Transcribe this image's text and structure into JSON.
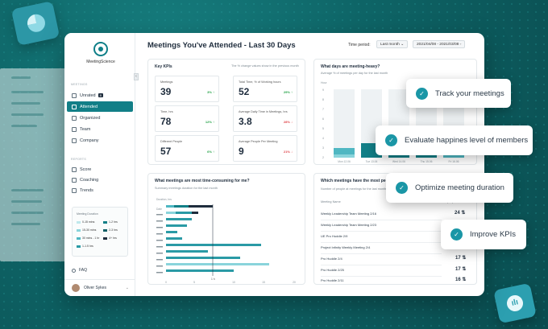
{
  "brand": {
    "logo_text": "MeetingScience"
  },
  "sidebar": {
    "meetings_header": "MEETINGS",
    "items": [
      {
        "label": "Unrated",
        "badge": "8"
      },
      {
        "label": "Attended"
      },
      {
        "label": "Organized"
      },
      {
        "label": "Team"
      },
      {
        "label": "Company"
      }
    ],
    "reports_header": "REPORTS",
    "reports": [
      {
        "label": "Score"
      },
      {
        "label": "Coaching"
      },
      {
        "label": "Trends"
      }
    ],
    "legend": {
      "title": "Meeting Duration",
      "items": [
        "0-15 mins",
        "1-2 hrs",
        "15-30 mins",
        "2-3 hrs",
        "30 mins - 1 hr",
        "4+ hrs",
        "1-1.5 hrs"
      ]
    },
    "faq": "FAQ",
    "user": "Oliver Sykes"
  },
  "header": {
    "title": "Meetings You've Attended - Last 30 Days",
    "time_period_label": "Time period:",
    "period_value": "Last month",
    "date_range": "2021/04/08 - 2021/03/08"
  },
  "kpis": {
    "title": "Key KPIs",
    "subtitle": "The % change values show in the previous month",
    "items": [
      {
        "label": "Meetings",
        "value": "39",
        "delta": "3%",
        "dir": "up"
      },
      {
        "label": "Total Time, % of Working hours",
        "value": "52",
        "delta": "29%",
        "dir": "up"
      },
      {
        "label": "Time, hrs",
        "value": "78",
        "delta": "12%",
        "dir": "up"
      },
      {
        "label": "Average Daily Time in Meetings, hrs",
        "value": "3.8",
        "delta": "28%",
        "dir": "down"
      },
      {
        "label": "Different People",
        "value": "57",
        "delta": "6%",
        "dir": "up"
      },
      {
        "label": "Average People Per Meeting",
        "value": "9",
        "delta": "21%",
        "dir": "down"
      }
    ]
  },
  "heavy": {
    "title": "What days are meeting-heavy?",
    "subtitle": "Average % of meetings per day for the last month",
    "ylabel": "Hour",
    "ticks": [
      "9",
      "8",
      "7",
      "6",
      "5",
      "4",
      "3",
      "2",
      "1"
    ],
    "days": [
      "Mon 12.06",
      "Tue 13.06",
      "Wed 14.06",
      "Thu 15.06",
      "Fri 16.06"
    ]
  },
  "consuming": {
    "title": "What meetings are most time-consuming for me?",
    "subtitle": "Summary meetings duration for the last month",
    "axis_label": "Duration, hrs",
    "row_label": "Date",
    "ticks": [
      "0",
      "5",
      "10",
      "15",
      "20"
    ],
    "marker": "1 h"
  },
  "people": {
    "title": "Which meetings have the most people?",
    "subtitle": "Number of people at meetings for the last month",
    "col_meeting": "Meeting Name",
    "col_people": "Number of people",
    "rows": [
      {
        "name": "Weekly Leadership Team Meeting 2/16",
        "value": "24"
      },
      {
        "name": "Weekly Leadership Team Meeting 2/23",
        "value": ""
      },
      {
        "name": "UE Pro Huddle 2/9",
        "value": ""
      },
      {
        "name": "Project Infinity Weekly Meeting 2/4",
        "value": ""
      },
      {
        "name": "Pro Huddle 2/4",
        "value": "17"
      },
      {
        "name": "Pro Huddle 2/25",
        "value": "17"
      },
      {
        "name": "Pro Huddle 2/11",
        "value": "16"
      }
    ]
  },
  "callouts": [
    "Track your meetings",
    "Evaluate happines level of members",
    "Optimize meeting duration",
    "Improve KPIs"
  ],
  "colors": {
    "accent": "#127f87",
    "up": "#27a34a",
    "down": "#e0474c"
  }
}
